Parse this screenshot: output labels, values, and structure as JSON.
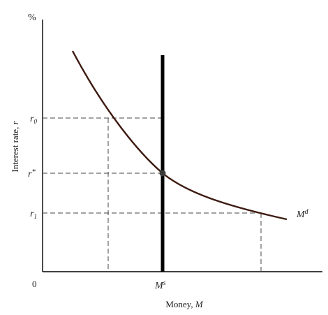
{
  "diagram": {
    "axes": {
      "y_top_label": "%",
      "y_label_main": "Interest rate, ",
      "y_label_var": "r",
      "x_label_main": "Money, ",
      "x_label_var": "M",
      "origin_label": "0"
    },
    "y_ticks": {
      "r0": {
        "base": "r",
        "sub": "0"
      },
      "rstar": {
        "base": "r",
        "sup": "*"
      },
      "r1": {
        "base": "r",
        "sub": "1"
      }
    },
    "x_ticks": {
      "ms": {
        "base": "M",
        "sup": "s"
      }
    },
    "curves": {
      "money_demand": {
        "base": "M",
        "sup": "d"
      }
    },
    "colors": {
      "demand_curve": "#3d1a10",
      "supply_line": "#000000",
      "guide_lines": "#444444",
      "axes": "#000000",
      "equilibrium_point": "#3a3a3a"
    }
  }
}
